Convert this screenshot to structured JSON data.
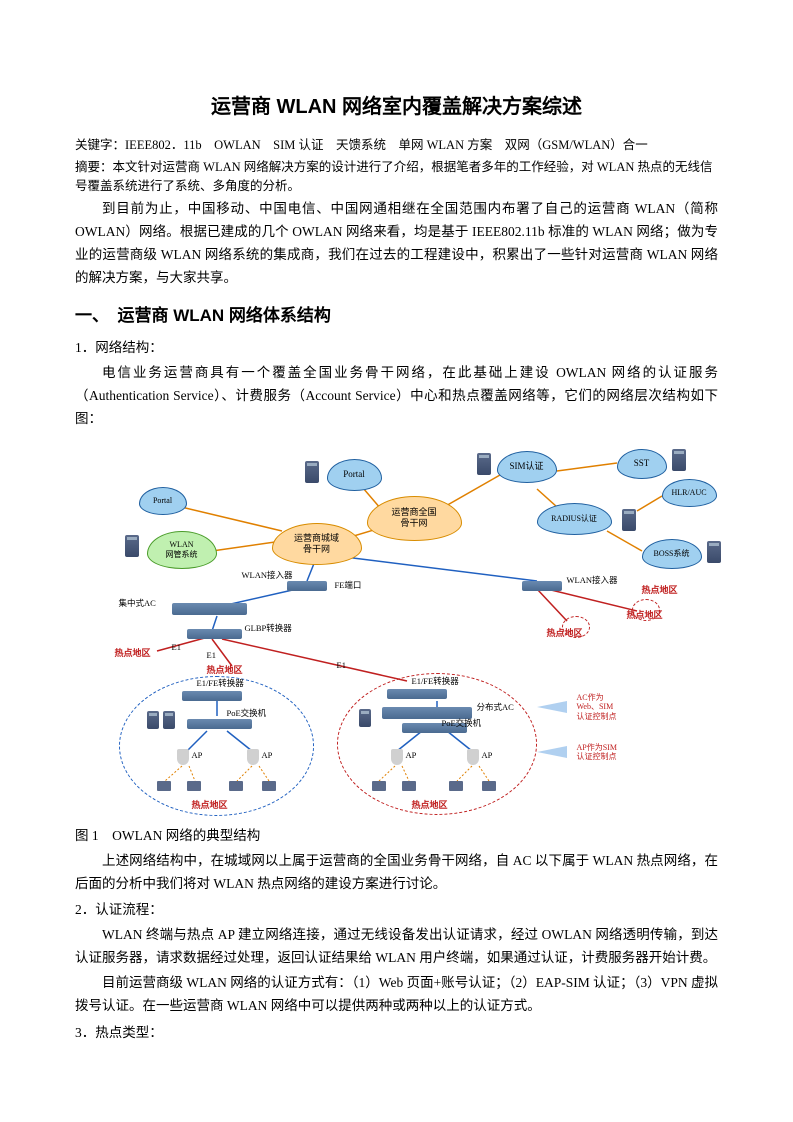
{
  "title": "运营商 WLAN 网络室内覆盖解决方案综述",
  "keywords_label": "关键字：",
  "keywords": "IEEE802．11b　OWLAN　SIM 认证　天馈系统　单网 WLAN 方案　双网（GSM/WLAN）合一",
  "abstract_label": "摘要：",
  "abstract": "本文针对运营商 WLAN 网络解决方案的设计进行了介绍，根据笔者多年的工作经验，对 WLAN 热点的无线信号覆盖系统进行了系统、多角度的分析。",
  "intro": "到目前为止，中国移动、中国电信、中国网通相继在全国范围内布署了自己的运营商 WLAN（简称 OWLAN）网络。根据已建成的几个 OWLAN 网络来看，均是基于 IEEE802.11b 标准的 WLAN 网络；做为专业的运营商级 WLAN 网络系统的集成商，我们在过去的工程建设中，积累出了一些针对运营商 WLAN 网络的解决方案，与大家共享。",
  "heading1": "一、　运营商 WLAN 网络体系结构",
  "sub1": "1．网络结构：",
  "para1": "电信业务运营商具有一个覆盖全国业务骨干网络，在此基础上建设 OWLAN 网络的认证服务（Authentication Service）、计费服务（Account Service）中心和热点覆盖网络等，它们的网络层次结构如下图：",
  "caption": "图 1　OWLAN 网络的典型结构",
  "para2": "上述网络结构中，在城域网以上属于运营商的全国业务骨干网络，自 AC 以下属于 WLAN 热点网络，在后面的分析中我们将对 WLAN 热点网络的建设方案进行讨论。",
  "sub2": "2．认证流程：",
  "para3": "WLAN 终端与热点 AP 建立网络连接，通过无线设备发出认证请求，经过 OWLAN 网络透明传输，到达认证服务器，请求数据经过处理，返回认证结果给 WLAN 用户终端，如果通过认证，计费服务器开始计费。",
  "para4": "目前运营商级 WLAN 网络的认证方式有：（1）Web 页面+账号认证；（2）EAP-SIM 认证；（3）VPN 虚拟拨号认证。在一些运营商 WLAN 网络中可以提供两种或两种以上的认证方式。",
  "sub3": "3．热点类型：",
  "diagram": {
    "clouds": {
      "national": "运营商全国\n骨干网",
      "metro": "运营商城域\n骨干网",
      "wlan_mgmt": "WLAN\n网管系统",
      "portal": "Portal",
      "sim": "SIM认证",
      "sst": "SST",
      "hlr": "HLR/AUC",
      "radius": "RADIUS认证",
      "boss": "BOSS系统"
    },
    "labels": {
      "wlan_access": "WLAN接入器",
      "fe_port": "FE端口",
      "wlan_access2": "WLAN接入器",
      "centralized_ac": "集中式AC",
      "glbp": "GLBP转换器",
      "e1": "E1",
      "e1_2": "E1",
      "hotspot": "热点地区",
      "hotspot2": "热点地区",
      "hotspot3": "热点地区",
      "hotspot4": "热点地区",
      "hotspot5": "热点地区",
      "hotspot6": "热点地区",
      "hotspot7": "热点地区",
      "e1fe_conv": "E1/FE转换器",
      "e1fe_conv2": "E1/FE转换器",
      "poe": "PoE交换机",
      "poe2": "PoE交换机",
      "distributed_ac": "分布式AC",
      "ap": "AP",
      "ap2": "AP",
      "ap3": "AP",
      "ap4": "AP"
    },
    "annotations": {
      "ac_note": "AC作为\nWeb、SIM\n认证控制点",
      "ap_note": "AP作为SIM\n认证控制点"
    },
    "colors": {
      "orange_fill": "#ffd9a0",
      "orange_border": "#d88c00",
      "green_fill": "#c0f0b0",
      "green_border": "#4a9c2a",
      "blue_fill": "#a0d0f0",
      "blue_border": "#2060a0",
      "red": "#c02020",
      "line_blue": "#2060c0",
      "line_orange": "#e08000"
    }
  }
}
